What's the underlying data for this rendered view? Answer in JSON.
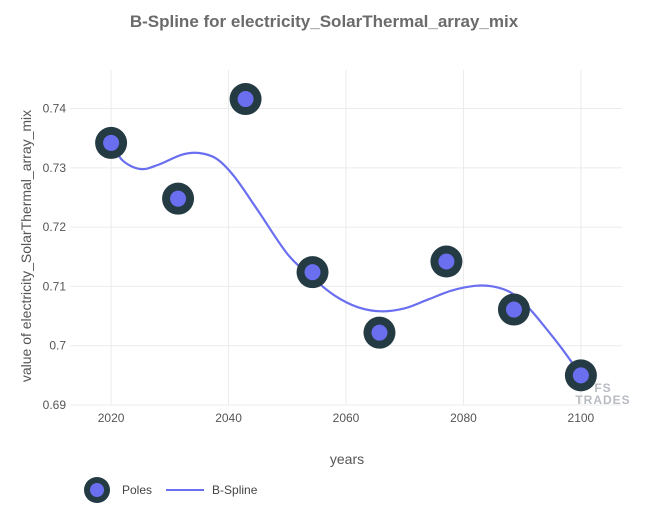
{
  "chart_data": {
    "type": "line",
    "title": "B-Spline for electricity_SolarThermal_array_mix",
    "xlabel": "years",
    "ylabel": "value of electricity_SolarThermal_array_mix",
    "xlim": [
      2013,
      2107
    ],
    "ylim": [
      0.69,
      0.7465
    ],
    "x_ticks": [
      2020,
      2040,
      2060,
      2080,
      2100
    ],
    "y_ticks": [
      0.69,
      0.7,
      0.71,
      0.72,
      0.73,
      0.74
    ],
    "grid": true,
    "legend_position": "bottom-left",
    "series": [
      {
        "name": "Poles",
        "mode": "markers",
        "x": [
          2020,
          2031.4,
          2042.9,
          2054.3,
          2065.7,
          2077.1,
          2088.6,
          2100
        ],
        "y": [
          0.7342,
          0.7248,
          0.7416,
          0.7124,
          0.7022,
          0.7142,
          0.7061,
          0.695
        ]
      },
      {
        "name": "B-Spline",
        "mode": "line",
        "x": [
          2020,
          2022,
          2025,
          2028,
          2032,
          2035,
          2038,
          2041,
          2045,
          2050,
          2054,
          2058,
          2062,
          2066,
          2070,
          2074,
          2078,
          2082,
          2085,
          2088,
          2091,
          2094,
          2097,
          2100
        ],
        "y": [
          0.7342,
          0.7312,
          0.7298,
          0.7305,
          0.7322,
          0.7325,
          0.7315,
          0.7285,
          0.7228,
          0.7155,
          0.7117,
          0.7085,
          0.7065,
          0.7058,
          0.7063,
          0.7078,
          0.7093,
          0.7101,
          0.71,
          0.709,
          0.7065,
          0.703,
          0.6992,
          0.695
        ]
      }
    ]
  },
  "legend": {
    "poles_label": "Poles",
    "spline_label": "B-Spline"
  },
  "watermark": {
    "line1": "FS",
    "line2": "TRADES"
  },
  "colors": {
    "marker_outer": "#243b43",
    "marker_inner": "#6a6ff0",
    "line": "#6a6ff0",
    "grid": "#ebebeb",
    "tick": "#555555"
  }
}
